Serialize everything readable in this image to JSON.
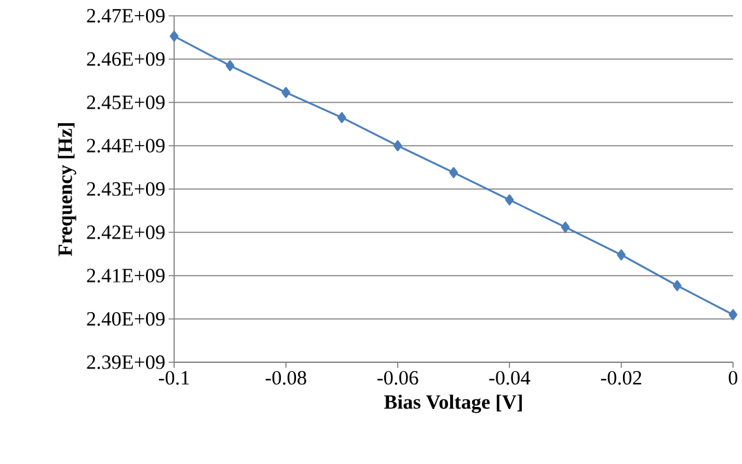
{
  "chart_data": {
    "type": "line",
    "xlabel": "Bias Voltage [V]",
    "ylabel": "Frequency [Hz]",
    "x": [
      -0.1,
      -0.09,
      -0.08,
      -0.07,
      -0.06,
      -0.05,
      -0.04,
      -0.03,
      -0.02,
      -0.01,
      0
    ],
    "series": [
      {
        "color": "#4a7ebb",
        "values": [
          2465300000,
          2458500000,
          2452300000,
          2446500000,
          2440000000,
          2433800000,
          2427500000,
          2421200000,
          2414800000,
          2407700000,
          2401000000
        ]
      }
    ],
    "xlim": [
      -0.1,
      0
    ],
    "xticks": [
      -0.1,
      -0.08,
      -0.06,
      -0.04,
      -0.02,
      0
    ],
    "ylim": [
      2390000000,
      2470000000
    ],
    "yticks": [
      {
        "value": 2390000000,
        "label": "2.39E+09"
      },
      {
        "value": 2400000000,
        "label": "2.40E+09"
      },
      {
        "value": 2410000000,
        "label": "2.41E+09"
      },
      {
        "value": 2420000000,
        "label": "2.42E+09"
      },
      {
        "value": 2430000000,
        "label": "2.43E+09"
      },
      {
        "value": 2440000000,
        "label": "2.44E+09"
      },
      {
        "value": 2450000000,
        "label": "2.45E+09"
      },
      {
        "value": 2460000000,
        "label": "2.46E+09"
      },
      {
        "value": 2470000000,
        "label": "2.47E+09"
      }
    ],
    "grid": "y",
    "marker": "diamond",
    "line_style": "solid"
  }
}
